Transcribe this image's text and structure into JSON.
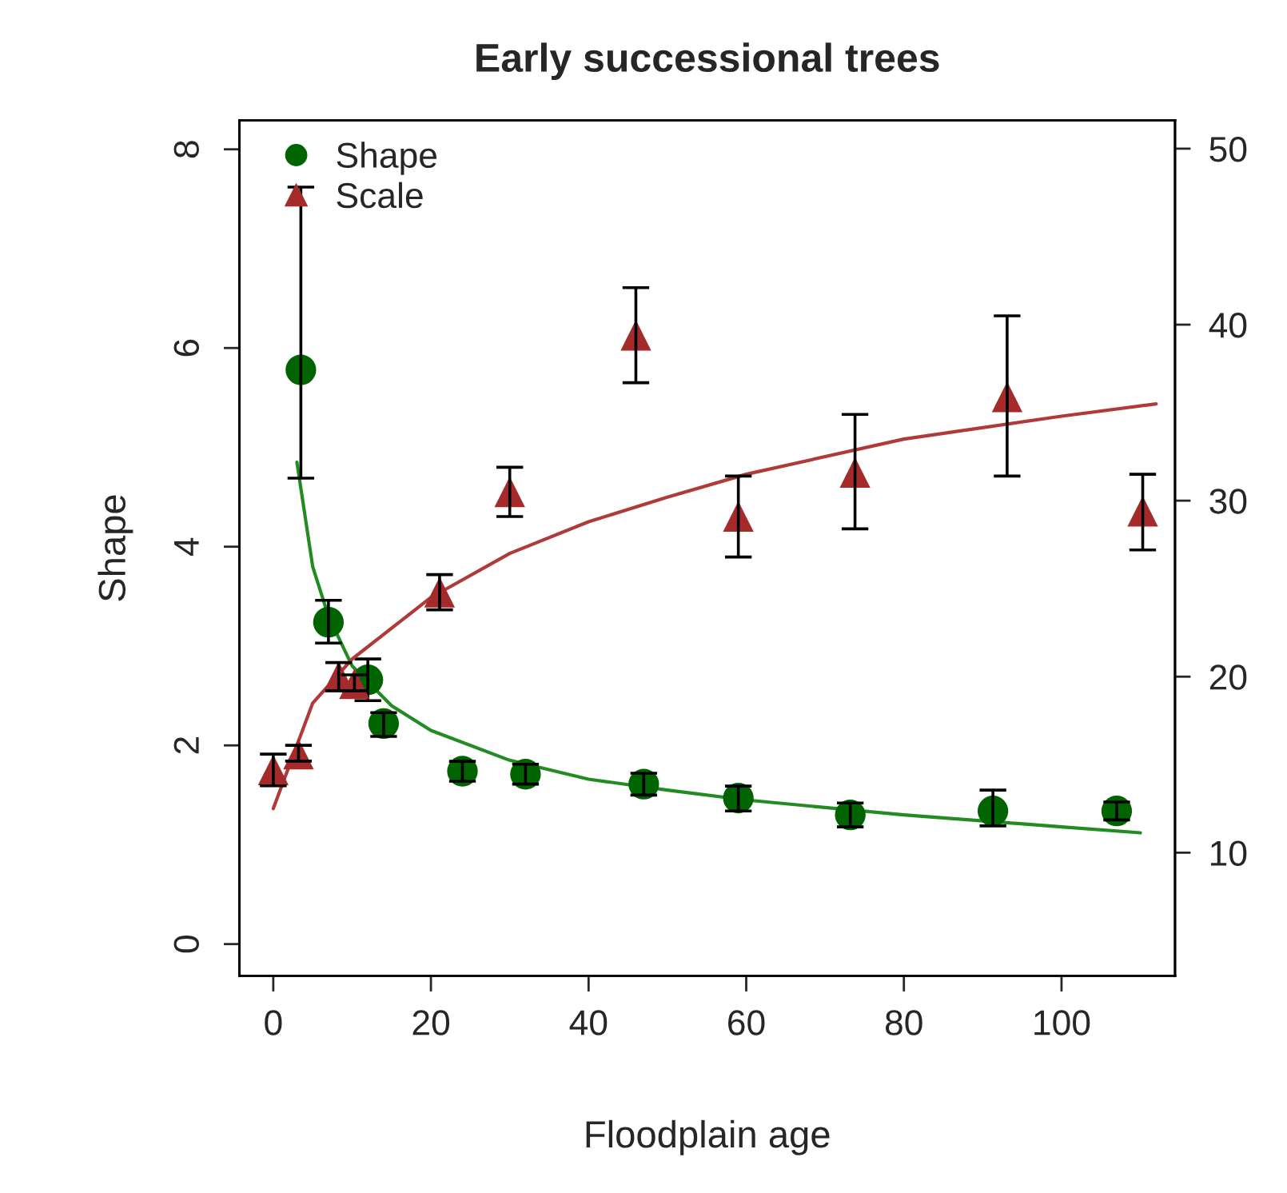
{
  "chart_data": {
    "type": "scatter",
    "title": "Early successional trees",
    "xlabel": "Floodplain age",
    "ylabel": "Shape",
    "xlim": [
      -4.3,
      114.4
    ],
    "ylim": [
      -0.32,
      8.29
    ],
    "y2lim": [
      3.0,
      51.6
    ],
    "xticks": [
      0,
      20,
      40,
      60,
      80,
      100
    ],
    "yticks": [
      0,
      2,
      4,
      6,
      8
    ],
    "y2ticks": [
      10,
      20,
      30,
      40,
      50
    ],
    "legend": "top left",
    "grid": false,
    "series": [
      {
        "name": "Shape",
        "color": "#006400",
        "marker": "circle",
        "x": [
          3.5,
          7,
          12,
          14,
          24,
          32,
          47,
          59,
          73.2,
          91.3,
          107
        ],
        "values": [
          5.78,
          3.24,
          2.66,
          2.22,
          1.74,
          1.71,
          1.61,
          1.47,
          1.3,
          1.34,
          1.34
        ],
        "errors": [
          [
            4.69,
            7.62
          ],
          [
            3.03,
            3.46
          ],
          [
            2.45,
            2.87
          ],
          [
            2.09,
            2.33
          ],
          [
            1.64,
            1.84
          ],
          [
            1.61,
            1.81
          ],
          [
            1.5,
            1.72
          ],
          [
            1.34,
            1.59
          ],
          [
            1.18,
            1.42
          ],
          [
            1.19,
            1.55
          ],
          [
            1.25,
            1.43
          ]
        ]
      },
      {
        "name": "Scale",
        "color": "#a52a2a",
        "marker": "triangle",
        "axis": "y2",
        "x": [
          0,
          3.2,
          8.3,
          10.3,
          21.1,
          30,
          46,
          59,
          73.8,
          93.1,
          110.3
        ],
        "values": [
          14.7,
          15.6,
          20.0,
          19.6,
          24.8,
          30.5,
          39.4,
          29.1,
          31.6,
          35.9,
          29.4
        ],
        "errors": [
          [
            13.8,
            15.6
          ],
          [
            15.2,
            16.1
          ],
          [
            19.2,
            20.8
          ],
          [
            19.2,
            20.1
          ],
          [
            23.8,
            25.8
          ],
          [
            29.1,
            31.9
          ],
          [
            36.7,
            42.1
          ],
          [
            26.8,
            31.4
          ],
          [
            28.4,
            34.9
          ],
          [
            31.4,
            40.5
          ],
          [
            27.2,
            31.5
          ]
        ]
      },
      {
        "type": "line",
        "color": "#228b22",
        "x": [
          3,
          5,
          7,
          10,
          15,
          20,
          30,
          40,
          50,
          60,
          80,
          100,
          110
        ],
        "values": [
          4.85,
          3.8,
          3.3,
          2.8,
          2.4,
          2.15,
          1.85,
          1.66,
          1.55,
          1.45,
          1.3,
          1.18,
          1.12
        ]
      },
      {
        "type": "line",
        "color": "#b03a3a",
        "axis": "y2",
        "x": [
          0,
          5,
          10,
          20,
          30,
          40,
          50,
          60,
          80,
          100,
          112
        ],
        "values": [
          12.5,
          18.5,
          21,
          24.5,
          27,
          28.8,
          30.2,
          31.5,
          33.5,
          34.8,
          35.5
        ]
      }
    ]
  }
}
